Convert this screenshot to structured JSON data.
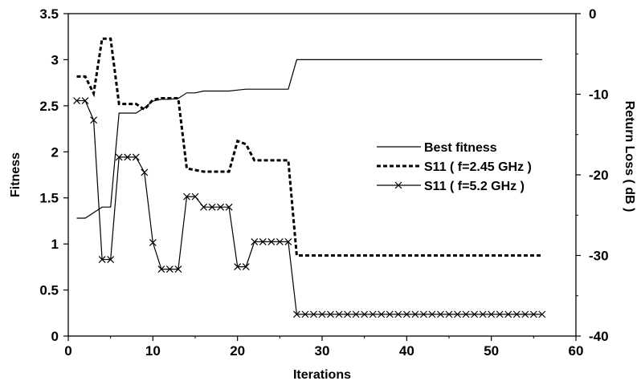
{
  "chart_data": {
    "type": "line",
    "title": "",
    "xlabel": "Iterations",
    "ylabel_left": "Fitness",
    "ylabel_right": "Return Loss ( dB )",
    "xlim": [
      0,
      60
    ],
    "ylim_left": [
      0,
      3.5
    ],
    "ylim_right": [
      -40,
      0
    ],
    "x_ticks": [
      0,
      10,
      20,
      30,
      40,
      50,
      60
    ],
    "y_left_ticks": [
      0,
      0.5,
      1,
      1.5,
      2,
      2.5,
      3,
      3.5
    ],
    "y_right_ticks": [
      -40,
      -30,
      -20,
      -10,
      0
    ],
    "x_tick_labels": [
      "0",
      "10",
      "20",
      "30",
      "40",
      "50",
      "60"
    ],
    "y_left_tick_labels": [
      "0",
      "0.5",
      "1",
      "1.5",
      "2",
      "2.5",
      "3",
      "3.5"
    ],
    "y_right_tick_labels": [
      "-40",
      "-30",
      "-20",
      "-10",
      "0"
    ],
    "grid": false,
    "legend_position": "center-right",
    "series": [
      {
        "name": "Best fitness",
        "axis": "left",
        "style": "solid",
        "marker": "none",
        "x": [
          1,
          2,
          3,
          4,
          5,
          6,
          7,
          8,
          9,
          10,
          11,
          12,
          13,
          14,
          15,
          16,
          17,
          18,
          19,
          20,
          21,
          22,
          23,
          24,
          25,
          26,
          27,
          28,
          56
        ],
        "y": [
          1.28,
          1.28,
          1.34,
          1.4,
          1.4,
          2.42,
          2.42,
          2.42,
          2.48,
          2.55,
          2.57,
          2.57,
          2.58,
          2.64,
          2.64,
          2.66,
          2.66,
          2.66,
          2.66,
          2.67,
          2.68,
          2.68,
          2.68,
          2.68,
          2.68,
          2.68,
          3.0,
          3.0,
          3.0
        ]
      },
      {
        "name": "S11 ( f=2.45 GHz )",
        "axis": "right",
        "style": "dashed",
        "marker": "none",
        "x": [
          1,
          2,
          3,
          4,
          5,
          6,
          7,
          8,
          9,
          10,
          11,
          12,
          13,
          14,
          15,
          16,
          17,
          18,
          19,
          20,
          21,
          22,
          23,
          24,
          25,
          26,
          27,
          28,
          56
        ],
        "y": [
          -7.8,
          -7.8,
          -9.9,
          -3.1,
          -3.1,
          -11.2,
          -11.2,
          -11.2,
          -11.9,
          -10.7,
          -10.5,
          -10.5,
          -10.5,
          -19.2,
          -19.4,
          -19.6,
          -19.6,
          -19.6,
          -19.6,
          -15.8,
          -16.2,
          -18.2,
          -18.2,
          -18.2,
          -18.2,
          -18.2,
          -30.0,
          -30.0,
          -30.0
        ]
      },
      {
        "name": "S11 ( f=5.2 GHz )",
        "axis": "right",
        "style": "solid",
        "marker": "x",
        "x": [
          1,
          2,
          3,
          4,
          5,
          6,
          7,
          8,
          9,
          10,
          11,
          12,
          13,
          14,
          15,
          16,
          17,
          18,
          19,
          20,
          21,
          22,
          23,
          24,
          25,
          26,
          27,
          28,
          29,
          30,
          31,
          32,
          33,
          34,
          35,
          36,
          37,
          38,
          39,
          40,
          41,
          42,
          43,
          44,
          45,
          46,
          47,
          48,
          49,
          50,
          51,
          52,
          53,
          54,
          55,
          56
        ],
        "y": [
          -10.8,
          -10.8,
          -13.2,
          -30.5,
          -30.5,
          -17.8,
          -17.8,
          -17.8,
          -19.7,
          -28.4,
          -31.7,
          -31.7,
          -31.7,
          -22.7,
          -22.7,
          -24.0,
          -24.0,
          -24.0,
          -24.0,
          -31.4,
          -31.4,
          -28.3,
          -28.3,
          -28.3,
          -28.3,
          -28.3,
          -37.3,
          -37.3,
          -37.3,
          -37.3,
          -37.3,
          -37.3,
          -37.3,
          -37.3,
          -37.3,
          -37.3,
          -37.3,
          -37.3,
          -37.3,
          -37.3,
          -37.3,
          -37.3,
          -37.3,
          -37.3,
          -37.3,
          -37.3,
          -37.3,
          -37.3,
          -37.3,
          -37.3,
          -37.3,
          -37.3,
          -37.3,
          -37.3,
          -37.3,
          -37.3
        ]
      }
    ]
  },
  "colors": {
    "line": "#000000",
    "background": "#ffffff"
  }
}
